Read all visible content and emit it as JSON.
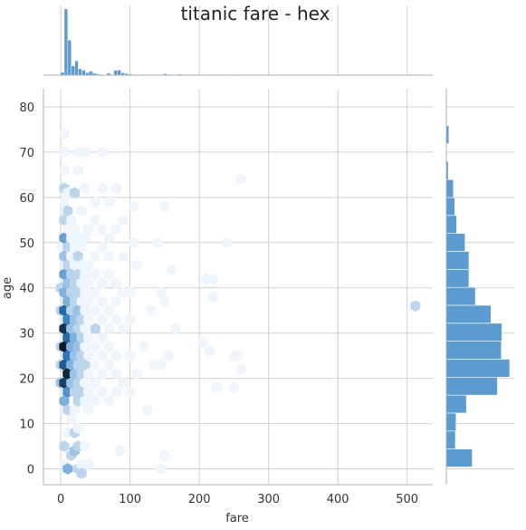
{
  "chart_data": {
    "type": "hexbin-joint",
    "title": "titanic fare - hex",
    "xlabel": "fare",
    "ylabel": "age",
    "xlim": [
      -25,
      537
    ],
    "ylim": [
      -3.5,
      84
    ],
    "xticks": [
      0,
      100,
      200,
      300,
      400,
      500
    ],
    "yticks": [
      0,
      10,
      20,
      30,
      40,
      50,
      60,
      70,
      80
    ],
    "grid": true,
    "cmap": [
      "#eef5fc",
      "#2c7bc4",
      "#0b1a2c"
    ],
    "hex_bins": [
      {
        "fare": 0,
        "age": 19,
        "count": 3
      },
      {
        "fare": 0,
        "age": 23,
        "count": 2
      },
      {
        "fare": 0,
        "age": 27,
        "count": 2
      },
      {
        "fare": 0,
        "age": 35,
        "count": 2
      },
      {
        "fare": 0,
        "age": 40,
        "count": 2
      },
      {
        "fare": 0,
        "age": 49,
        "count": 1
      },
      {
        "fare": 5,
        "age": 15,
        "count": 4
      },
      {
        "fare": 5,
        "age": 19,
        "count": 12
      },
      {
        "fare": 5,
        "age": 23,
        "count": 10
      },
      {
        "fare": 5,
        "age": 27,
        "count": 15
      },
      {
        "fare": 5,
        "age": 31,
        "count": 13
      },
      {
        "fare": 5,
        "age": 35,
        "count": 9
      },
      {
        "fare": 5,
        "age": 39,
        "count": 4
      },
      {
        "fare": 5,
        "age": 43,
        "count": 5
      },
      {
        "fare": 5,
        "age": 47,
        "count": 3
      },
      {
        "fare": 5,
        "age": 51,
        "count": 5
      },
      {
        "fare": 5,
        "age": 55,
        "count": 2
      },
      {
        "fare": 5,
        "age": 59,
        "count": 1
      },
      {
        "fare": 5,
        "age": 62,
        "count": 2
      },
      {
        "fare": 5,
        "age": 66,
        "count": 1
      },
      {
        "fare": 5,
        "age": 70,
        "count": 1
      },
      {
        "fare": 5,
        "age": 74,
        "count": 1
      },
      {
        "fare": 5,
        "age": 1,
        "count": 1
      },
      {
        "fare": 5,
        "age": 5,
        "count": 2
      },
      {
        "fare": 10,
        "age": 13,
        "count": 2
      },
      {
        "fare": 10,
        "age": 17,
        "count": 6
      },
      {
        "fare": 10,
        "age": 21,
        "count": 14
      },
      {
        "fare": 10,
        "age": 25,
        "count": 8
      },
      {
        "fare": 10,
        "age": 29,
        "count": 9
      },
      {
        "fare": 10,
        "age": 33,
        "count": 7
      },
      {
        "fare": 10,
        "age": 37,
        "count": 4
      },
      {
        "fare": 10,
        "age": 41,
        "count": 3
      },
      {
        "fare": 10,
        "age": 45,
        "count": 2
      },
      {
        "fare": 10,
        "age": 49,
        "count": 2
      },
      {
        "fare": 10,
        "age": 53,
        "count": 1
      },
      {
        "fare": 10,
        "age": 57,
        "count": 2
      },
      {
        "fare": 10,
        "age": 61,
        "count": 1
      },
      {
        "fare": 10,
        "age": 0,
        "count": 4
      },
      {
        "fare": 10,
        "age": 8,
        "count": 1
      },
      {
        "fare": 15,
        "age": 19,
        "count": 3
      },
      {
        "fare": 15,
        "age": 23,
        "count": 4
      },
      {
        "fare": 15,
        "age": 27,
        "count": 4
      },
      {
        "fare": 15,
        "age": 31,
        "count": 3
      },
      {
        "fare": 15,
        "age": 35,
        "count": 2
      },
      {
        "fare": 15,
        "age": 39,
        "count": 2
      },
      {
        "fare": 15,
        "age": 43,
        "count": 2
      },
      {
        "fare": 15,
        "age": 47,
        "count": 1
      },
      {
        "fare": 15,
        "age": 51,
        "count": 1
      },
      {
        "fare": 15,
        "age": 55,
        "count": 1
      },
      {
        "fare": 15,
        "age": 3,
        "count": 2
      },
      {
        "fare": 15,
        "age": 11,
        "count": 1
      },
      {
        "fare": 20,
        "age": 13,
        "count": 1
      },
      {
        "fare": 20,
        "age": 17,
        "count": 2
      },
      {
        "fare": 20,
        "age": 21,
        "count": 3
      },
      {
        "fare": 20,
        "age": 25,
        "count": 3
      },
      {
        "fare": 20,
        "age": 29,
        "count": 4
      },
      {
        "fare": 20,
        "age": 33,
        "count": 3
      },
      {
        "fare": 20,
        "age": 37,
        "count": 2
      },
      {
        "fare": 20,
        "age": 41,
        "count": 2
      },
      {
        "fare": 20,
        "age": 45,
        "count": 1
      },
      {
        "fare": 20,
        "age": 49,
        "count": 1
      },
      {
        "fare": 20,
        "age": 53,
        "count": 1
      },
      {
        "fare": 20,
        "age": 4,
        "count": 3
      },
      {
        "fare": 20,
        "age": 8,
        "count": 2
      },
      {
        "fare": 20,
        "age": 61,
        "count": 2
      },
      {
        "fare": 25,
        "age": 0,
        "count": 2
      },
      {
        "fare": 25,
        "age": 15,
        "count": 2
      },
      {
        "fare": 25,
        "age": 19,
        "count": 2
      },
      {
        "fare": 25,
        "age": 23,
        "count": 2
      },
      {
        "fare": 25,
        "age": 27,
        "count": 3
      },
      {
        "fare": 25,
        "age": 31,
        "count": 2
      },
      {
        "fare": 25,
        "age": 35,
        "count": 3
      },
      {
        "fare": 25,
        "age": 39,
        "count": 2
      },
      {
        "fare": 25,
        "age": 43,
        "count": 2
      },
      {
        "fare": 25,
        "age": 47,
        "count": 2
      },
      {
        "fare": 25,
        "age": 51,
        "count": 1
      },
      {
        "fare": 25,
        "age": 5,
        "count": 2
      },
      {
        "fare": 25,
        "age": 9,
        "count": 1
      },
      {
        "fare": 25,
        "age": 66,
        "count": 1
      },
      {
        "fare": 25,
        "age": 70,
        "count": 1
      },
      {
        "fare": 30,
        "age": 1,
        "count": 1
      },
      {
        "fare": 30,
        "age": 17,
        "count": 2
      },
      {
        "fare": 30,
        "age": 21,
        "count": 2
      },
      {
        "fare": 30,
        "age": 25,
        "count": 2
      },
      {
        "fare": 30,
        "age": 29,
        "count": 2
      },
      {
        "fare": 30,
        "age": 33,
        "count": 2
      },
      {
        "fare": 30,
        "age": 37,
        "count": 1
      },
      {
        "fare": 30,
        "age": 41,
        "count": 1
      },
      {
        "fare": 30,
        "age": 45,
        "count": 1
      },
      {
        "fare": 30,
        "age": 49,
        "count": 1
      },
      {
        "fare": 30,
        "age": 57,
        "count": 1
      },
      {
        "fare": 30,
        "age": -1,
        "count": 2
      },
      {
        "fare": 35,
        "age": 15,
        "count": 1
      },
      {
        "fare": 35,
        "age": 19,
        "count": 1
      },
      {
        "fare": 35,
        "age": 23,
        "count": 2
      },
      {
        "fare": 35,
        "age": 27,
        "count": 1
      },
      {
        "fare": 35,
        "age": 31,
        "count": 1
      },
      {
        "fare": 35,
        "age": 35,
        "count": 1
      },
      {
        "fare": 35,
        "age": 39,
        "count": 1
      },
      {
        "fare": 35,
        "age": 43,
        "count": 1
      },
      {
        "fare": 35,
        "age": 51,
        "count": 1
      },
      {
        "fare": 35,
        "age": 5,
        "count": 1
      },
      {
        "fare": 35,
        "age": 62,
        "count": 1
      },
      {
        "fare": 35,
        "age": 70,
        "count": 1
      },
      {
        "fare": 40,
        "age": 1,
        "count": 1
      },
      {
        "fare": 40,
        "age": 13,
        "count": 1
      },
      {
        "fare": 40,
        "age": 17,
        "count": 1
      },
      {
        "fare": 40,
        "age": 21,
        "count": 1
      },
      {
        "fare": 40,
        "age": 25,
        "count": 1
      },
      {
        "fare": 40,
        "age": 29,
        "count": 1
      },
      {
        "fare": 40,
        "age": 33,
        "count": 1
      },
      {
        "fare": 40,
        "age": 37,
        "count": 1
      },
      {
        "fare": 40,
        "age": 41,
        "count": 1
      },
      {
        "fare": 40,
        "age": 45,
        "count": 1
      },
      {
        "fare": 40,
        "age": 53,
        "count": 1
      },
      {
        "fare": 50,
        "age": 15,
        "count": 1
      },
      {
        "fare": 50,
        "age": 19,
        "count": 1
      },
      {
        "fare": 50,
        "age": 23,
        "count": 1
      },
      {
        "fare": 50,
        "age": 27,
        "count": 1
      },
      {
        "fare": 50,
        "age": 31,
        "count": 2
      },
      {
        "fare": 50,
        "age": 35,
        "count": 1
      },
      {
        "fare": 50,
        "age": 39,
        "count": 1
      },
      {
        "fare": 50,
        "age": 43,
        "count": 1
      },
      {
        "fare": 50,
        "age": 47,
        "count": 1
      },
      {
        "fare": 50,
        "age": 55,
        "count": 1
      },
      {
        "fare": 50,
        "age": 59,
        "count": 1
      },
      {
        "fare": 60,
        "age": 17,
        "count": 1
      },
      {
        "fare": 60,
        "age": 21,
        "count": 1
      },
      {
        "fare": 60,
        "age": 25,
        "count": 1
      },
      {
        "fare": 60,
        "age": 29,
        "count": 1
      },
      {
        "fare": 60,
        "age": 33,
        "count": 1
      },
      {
        "fare": 60,
        "age": 37,
        "count": 1
      },
      {
        "fare": 60,
        "age": 41,
        "count": 1
      },
      {
        "fare": 60,
        "age": 49,
        "count": 1
      },
      {
        "fare": 60,
        "age": 53,
        "count": 1
      },
      {
        "fare": 60,
        "age": 62,
        "count": 1
      },
      {
        "fare": 60,
        "age": 70,
        "count": 1
      },
      {
        "fare": 70,
        "age": 15,
        "count": 1
      },
      {
        "fare": 70,
        "age": 23,
        "count": 1
      },
      {
        "fare": 70,
        "age": 27,
        "count": 1
      },
      {
        "fare": 70,
        "age": 31,
        "count": 1
      },
      {
        "fare": 70,
        "age": 35,
        "count": 1
      },
      {
        "fare": 70,
        "age": 43,
        "count": 1
      },
      {
        "fare": 70,
        "age": 47,
        "count": 1
      },
      {
        "fare": 70,
        "age": 51,
        "count": 1
      },
      {
        "fare": 70,
        "age": 59,
        "count": 1
      },
      {
        "fare": 80,
        "age": 17,
        "count": 1
      },
      {
        "fare": 80,
        "age": 21,
        "count": 1
      },
      {
        "fare": 80,
        "age": 25,
        "count": 1
      },
      {
        "fare": 80,
        "age": 33,
        "count": 1
      },
      {
        "fare": 80,
        "age": 37,
        "count": 1
      },
      {
        "fare": 80,
        "age": 41,
        "count": 1
      },
      {
        "fare": 80,
        "age": 53,
        "count": 1
      },
      {
        "fare": 80,
        "age": 62,
        "count": 1
      },
      {
        "fare": 85,
        "age": 4,
        "count": 1
      },
      {
        "fare": 90,
        "age": 19,
        "count": 1
      },
      {
        "fare": 90,
        "age": 31,
        "count": 1
      },
      {
        "fare": 90,
        "age": 39,
        "count": 1
      },
      {
        "fare": 90,
        "age": 47,
        "count": 1
      },
      {
        "fare": 90,
        "age": 55,
        "count": 1
      },
      {
        "fare": 100,
        "age": 17,
        "count": 1
      },
      {
        "fare": 100,
        "age": 25,
        "count": 1
      },
      {
        "fare": 100,
        "age": 33,
        "count": 1
      },
      {
        "fare": 100,
        "age": 39,
        "count": 1
      },
      {
        "fare": 110,
        "age": 45,
        "count": 1
      },
      {
        "fare": 105,
        "age": 58,
        "count": 1
      },
      {
        "fare": 105,
        "age": 50,
        "count": 1
      },
      {
        "fare": 110,
        "age": 21,
        "count": 1
      },
      {
        "fare": 120,
        "age": 27,
        "count": 1
      },
      {
        "fare": 130,
        "age": 35,
        "count": 1
      },
      {
        "fare": 125,
        "age": 13,
        "count": 1
      },
      {
        "fare": 135,
        "age": 23,
        "count": 1
      },
      {
        "fare": 140,
        "age": 50,
        "count": 1
      },
      {
        "fare": 145,
        "age": 0,
        "count": 1
      },
      {
        "fare": 150,
        "age": 3,
        "count": 1
      },
      {
        "fare": 150,
        "age": 37,
        "count": 1
      },
      {
        "fare": 150,
        "age": 58,
        "count": 1
      },
      {
        "fare": 145,
        "age": 23,
        "count": 1
      },
      {
        "fare": 145,
        "age": 39,
        "count": 1
      },
      {
        "fare": 155,
        "age": 25,
        "count": 1
      },
      {
        "fare": 160,
        "age": 44,
        "count": 1
      },
      {
        "fare": 165,
        "age": 31,
        "count": 1
      },
      {
        "fare": 205,
        "age": 28,
        "count": 1
      },
      {
        "fare": 210,
        "age": 42,
        "count": 1
      },
      {
        "fare": 215,
        "age": 26,
        "count": 1
      },
      {
        "fare": 220,
        "age": 42,
        "count": 1
      },
      {
        "fare": 220,
        "age": 38,
        "count": 1
      },
      {
        "fare": 225,
        "age": 18,
        "count": 1
      },
      {
        "fare": 240,
        "age": 50,
        "count": 1
      },
      {
        "fare": 250,
        "age": 25,
        "count": 1
      },
      {
        "fare": 250,
        "age": 18,
        "count": 1
      },
      {
        "fare": 260,
        "age": 64,
        "count": 1
      },
      {
        "fare": 260,
        "age": 22,
        "count": 1
      },
      {
        "fare": 255,
        "age": 25,
        "count": 1
      },
      {
        "fare": 512,
        "age": 36,
        "count": 2
      }
    ],
    "marginal_x": {
      "bin_start": 0,
      "bin_width": 5.12,
      "counts": [
        15,
        336,
        178,
        47,
        72,
        32,
        25,
        12,
        20,
        11,
        6,
        4,
        3,
        10,
        3,
        25,
        26,
        12,
        8,
        6,
        3,
        0,
        2,
        4,
        0,
        0,
        0,
        0,
        4,
        7,
        3,
        4,
        0,
        5,
        4,
        0,
        0,
        3,
        0,
        0,
        0,
        0,
        3,
        0,
        2,
        3,
        0,
        0,
        4,
        3,
        0,
        0,
        3,
        0,
        0,
        0,
        0,
        0,
        0,
        0,
        0,
        0,
        0,
        0,
        0,
        0,
        0,
        0,
        0,
        0,
        0,
        0,
        0,
        0,
        0,
        0,
        0,
        0,
        0,
        0,
        0,
        0,
        0,
        0,
        0,
        0,
        0,
        0,
        0,
        0,
        0,
        0,
        0,
        0,
        0,
        0,
        0,
        0,
        3,
        0
      ]
    },
    "marginal_y": {
      "bin_edges": [
        0.42,
        4.39,
        8.36,
        12.33,
        16.3,
        20.27,
        24.24,
        28.21,
        32.18,
        36.15,
        40.12,
        44.09,
        48.06,
        52.03,
        56.0,
        59.97,
        63.94,
        67.91,
        71.88,
        75.85,
        79.82
      ],
      "counts": [
        40,
        14,
        15,
        31,
        79,
        98,
        85,
        86,
        69,
        45,
        35,
        35,
        29,
        16,
        13,
        11,
        3,
        0,
        4,
        0
      ]
    }
  }
}
